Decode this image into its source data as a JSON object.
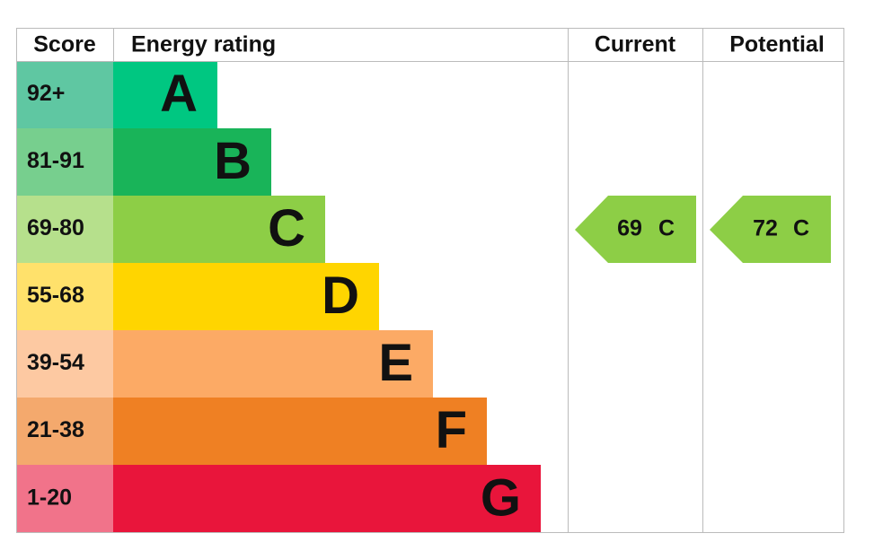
{
  "header": {
    "score": "Score",
    "rating": "Energy rating",
    "current": "Current",
    "potential": "Potential"
  },
  "rows": [
    {
      "score": "92+",
      "band": "A",
      "color": "#00c781",
      "score_color": "#5fc7a2"
    },
    {
      "score": "81-91",
      "band": "B",
      "color": "#19b459",
      "score_color": "#77cf8e"
    },
    {
      "score": "69-80",
      "band": "C",
      "color": "#8dce46",
      "score_color": "#b6e08c"
    },
    {
      "score": "55-68",
      "band": "D",
      "color": "#ffd500",
      "score_color": "#ffe16b"
    },
    {
      "score": "39-54",
      "band": "E",
      "color": "#fcaa65",
      "score_color": "#fdc9a2"
    },
    {
      "score": "21-38",
      "band": "F",
      "color": "#ef8023",
      "score_color": "#f4a96d"
    },
    {
      "score": "1-20",
      "band": "G",
      "color": "#e9153b",
      "score_color": "#f1738a"
    }
  ],
  "current": {
    "score": 69,
    "band": "C"
  },
  "potential": {
    "score": 72,
    "band": "C"
  }
}
